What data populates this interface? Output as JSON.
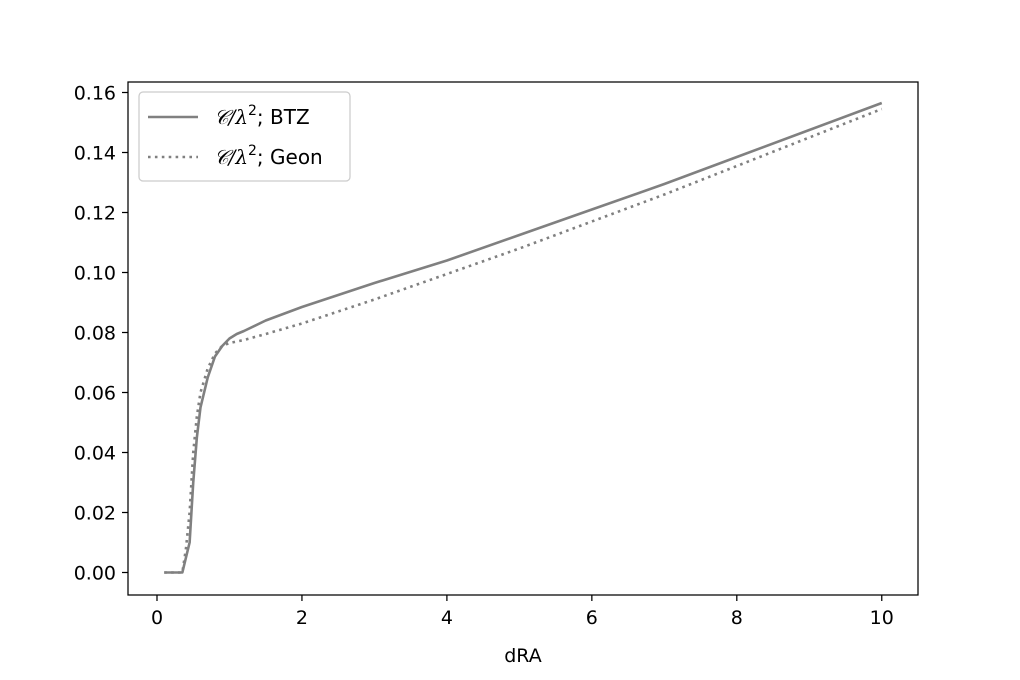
{
  "chart_data": {
    "type": "line",
    "xlabel": "dRA",
    "ylabel": "",
    "xlim": [
      -0.4,
      10.5
    ],
    "ylim": [
      -0.0075,
      0.1635
    ],
    "xticks": [
      0,
      2,
      4,
      6,
      8,
      10
    ],
    "yticks": [
      0.0,
      0.02,
      0.04,
      0.06,
      0.08,
      0.1,
      0.12,
      0.14,
      0.16
    ],
    "xtick_labels": [
      "0",
      "2",
      "4",
      "6",
      "8",
      "10"
    ],
    "ytick_labels": [
      "0.00",
      "0.02",
      "0.04",
      "0.06",
      "0.08",
      "0.10",
      "0.12",
      "0.14",
      "0.16"
    ],
    "grid": false,
    "legend_position": "top-left",
    "series": [
      {
        "name": "𝒞/λ²; BTZ",
        "legend_prefix": "𝒞/λ",
        "legend_sup": "2",
        "legend_suffix": "; BTZ",
        "style": "solid",
        "color": "#808080",
        "x": [
          0.1,
          0.2,
          0.3,
          0.35,
          0.4,
          0.45,
          0.5,
          0.55,
          0.6,
          0.7,
          0.8,
          0.9,
          1.0,
          1.1,
          1.2,
          1.5,
          2.0,
          3.0,
          4.0,
          5.0,
          6.0,
          7.0,
          8.0,
          9.0,
          10.0
        ],
        "y": [
          0.0,
          0.0,
          0.0,
          0.0,
          0.005,
          0.01,
          0.03,
          0.045,
          0.055,
          0.065,
          0.072,
          0.0755,
          0.078,
          0.0795,
          0.0805,
          0.084,
          0.0885,
          0.0965,
          0.104,
          0.1125,
          0.121,
          0.1295,
          0.1385,
          0.1475,
          0.1565
        ]
      },
      {
        "name": "𝒞/λ²; Geon",
        "legend_prefix": "𝒞/λ",
        "legend_sup": "2",
        "legend_suffix": "; Geon",
        "style": "dotted",
        "color": "#808080",
        "x": [
          0.1,
          0.2,
          0.3,
          0.35,
          0.4,
          0.45,
          0.5,
          0.55,
          0.6,
          0.7,
          0.8,
          0.9,
          1.0,
          1.1,
          1.2,
          1.5,
          2.0,
          3.0,
          4.0,
          5.0,
          6.0,
          7.0,
          8.0,
          9.0,
          10.0
        ],
        "y": [
          0.0,
          0.0,
          0.0,
          0.0,
          0.008,
          0.02,
          0.04,
          0.052,
          0.06,
          0.068,
          0.073,
          0.0755,
          0.0765,
          0.077,
          0.0775,
          0.0795,
          0.083,
          0.091,
          0.0995,
          0.108,
          0.117,
          0.126,
          0.1355,
          0.145,
          0.1545
        ]
      }
    ]
  }
}
